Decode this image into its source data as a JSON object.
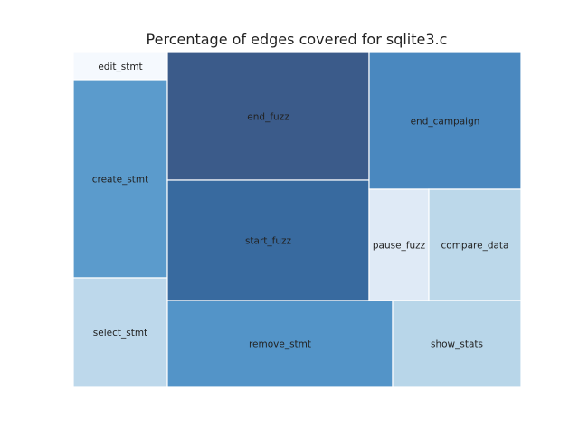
{
  "chart_data": {
    "type": "treemap",
    "title": "Percentage of edges covered for sqlite3.c",
    "cells": [
      {
        "label": "edit_stmt",
        "color": "#f5f9fe"
      },
      {
        "label": "create_stmt",
        "color": "#5b9bcc"
      },
      {
        "label": "select_stmt",
        "color": "#bdd8eb"
      },
      {
        "label": "end_fuzz",
        "color": "#3b5b8a"
      },
      {
        "label": "start_fuzz",
        "color": "#386a9f"
      },
      {
        "label": "remove_stmt",
        "color": "#5394c8"
      },
      {
        "label": "end_campaign",
        "color": "#4a88bf"
      },
      {
        "label": "pause_fuzz",
        "color": "#dfeaf6"
      },
      {
        "label": "compare_data",
        "color": "#bcd8ea"
      },
      {
        "label": "show_stats",
        "color": "#b8d6e9"
      }
    ]
  }
}
